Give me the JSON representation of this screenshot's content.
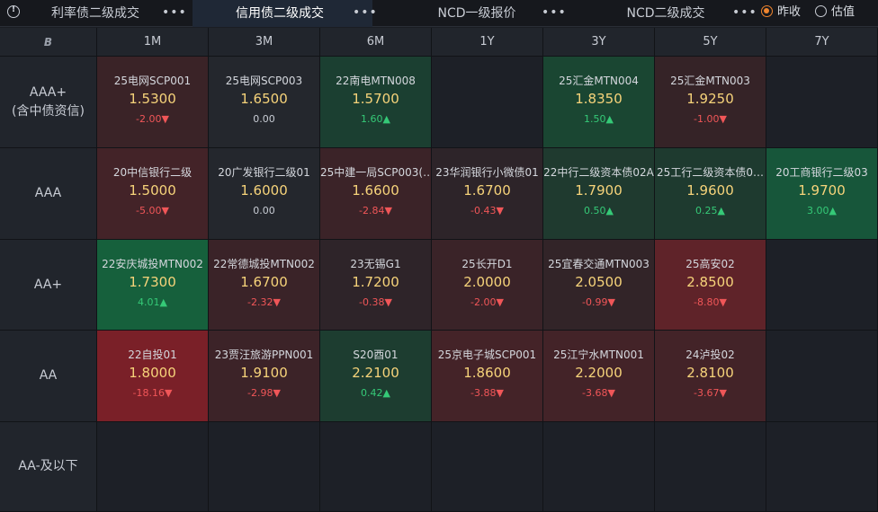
{
  "tabs": [
    {
      "label": "利率债二级成交",
      "active": false
    },
    {
      "label": "信用债二级成交",
      "active": true
    },
    {
      "label": "NCD一级报价",
      "active": false
    },
    {
      "label": "NCD二级成交",
      "active": false
    }
  ],
  "more": "•••",
  "radio": [
    {
      "label": "昨收",
      "checked": true
    },
    {
      "label": "估值",
      "checked": false
    }
  ],
  "corner": "B",
  "columns": [
    "1M",
    "3M",
    "6M",
    "1Y",
    "3Y",
    "5Y",
    "7Y"
  ],
  "rows": [
    {
      "label": "AAA+\n(含中债资信)",
      "cells": [
        {
          "name": "25电网SCP001",
          "yield": "1.5300",
          "chg": "-2.00▼",
          "dir": "down",
          "bg": "#3a2327"
        },
        {
          "name": "25电网SCP003",
          "yield": "1.6500",
          "chg": "0.00",
          "dir": "flat",
          "bg": "#24272d"
        },
        {
          "name": "22南电MTN008",
          "yield": "1.5700",
          "chg": "1.60▲",
          "dir": "up",
          "bg": "#1b3f31"
        },
        null,
        {
          "name": "25汇金MTN004",
          "yield": "1.8350",
          "chg": "1.50▲",
          "dir": "up",
          "bg": "#1a4632"
        },
        {
          "name": "25汇金MTN003",
          "yield": "1.9250",
          "chg": "-1.00▼",
          "dir": "down",
          "bg": "#352327"
        },
        null
      ]
    },
    {
      "label": "AAA",
      "cells": [
        {
          "name": "20中信银行二级",
          "yield": "1.5000",
          "chg": "-5.00▼",
          "dir": "down",
          "bg": "#432328"
        },
        {
          "name": "20广发银行二级01",
          "yield": "1.6000",
          "chg": "0.00",
          "dir": "flat",
          "bg": "#24272d"
        },
        {
          "name": "25中建一局SCP003(…",
          "yield": "1.6600",
          "chg": "-2.84▼",
          "dir": "down",
          "bg": "#3b2328"
        },
        {
          "name": "23华润银行小微债01",
          "yield": "1.6700",
          "chg": "-0.43▼",
          "dir": "down",
          "bg": "#2d2429"
        },
        {
          "name": "22中行二级资本债02A",
          "yield": "1.7900",
          "chg": "0.50▲",
          "dir": "up",
          "bg": "#1f3a2f"
        },
        {
          "name": "25工行二级资本债0…",
          "yield": "1.9600",
          "chg": "0.25▲",
          "dir": "up",
          "bg": "#1e3a2f"
        },
        {
          "name": "20工商银行二级03",
          "yield": "1.9700",
          "chg": "3.00▲",
          "dir": "up",
          "bg": "#17563a"
        }
      ]
    },
    {
      "label": "AA+",
      "cells": [
        {
          "name": "22安庆城投MTN002",
          "yield": "1.7300",
          "chg": "4.01▲",
          "dir": "up",
          "bg": "#16603c"
        },
        {
          "name": "22常德城投MTN002",
          "yield": "1.6700",
          "chg": "-2.32▼",
          "dir": "down",
          "bg": "#3a2328"
        },
        {
          "name": "23无锡G1",
          "yield": "1.7200",
          "chg": "-0.38▼",
          "dir": "down",
          "bg": "#2e2429"
        },
        {
          "name": "25长开D1",
          "yield": "2.0000",
          "chg": "-2.00▼",
          "dir": "down",
          "bg": "#3a2328"
        },
        {
          "name": "25宜春交通MTN003",
          "yield": "2.0500",
          "chg": "-0.99▼",
          "dir": "down",
          "bg": "#322428"
        },
        {
          "name": "25高安02",
          "yield": "2.8500",
          "chg": "-8.80▼",
          "dir": "down",
          "bg": "#5f2329"
        },
        null
      ]
    },
    {
      "label": "AA",
      "cells": [
        {
          "name": "22自投01",
          "yield": "1.8000",
          "chg": "-18.16▼",
          "dir": "down",
          "bg": "#7a2028"
        },
        {
          "name": "23贾汪旅游PPN001",
          "yield": "1.9100",
          "chg": "-2.98▼",
          "dir": "down",
          "bg": "#3c2328"
        },
        {
          "name": "S20酉01",
          "yield": "2.2100",
          "chg": "0.42▲",
          "dir": "up",
          "bg": "#1d3d30"
        },
        {
          "name": "25京电子城SCP001",
          "yield": "1.8600",
          "chg": "-3.88▼",
          "dir": "down",
          "bg": "#442328"
        },
        {
          "name": "25江宁水MTN001",
          "yield": "2.2000",
          "chg": "-3.68▼",
          "dir": "down",
          "bg": "#432328"
        },
        {
          "name": "24泸投02",
          "yield": "2.8100",
          "chg": "-3.67▼",
          "dir": "down",
          "bg": "#432328"
        },
        null
      ]
    },
    {
      "label": "AA-及以下",
      "cells": [
        null,
        null,
        null,
        null,
        null,
        null,
        null
      ]
    }
  ]
}
